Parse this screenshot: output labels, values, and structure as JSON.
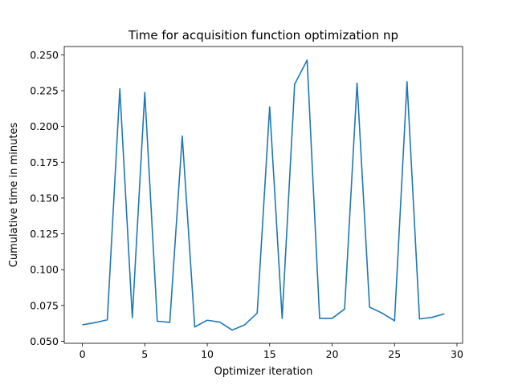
{
  "chart_data": {
    "type": "line",
    "title": "Time for acquisition function optimization np",
    "xlabel": "Optimizer iteration",
    "ylabel": "Cumulative time in minutes",
    "xlim": [
      -1.45,
      30.45
    ],
    "ylim": [
      0.0486,
      0.2558
    ],
    "xticks": [
      0,
      5,
      10,
      15,
      20,
      25,
      30
    ],
    "yticks": [
      0.05,
      0.075,
      0.1,
      0.125,
      0.15,
      0.175,
      0.2,
      0.225,
      0.25
    ],
    "ytick_labels": [
      "0.050",
      "0.075",
      "0.100",
      "0.125",
      "0.150",
      "0.175",
      "0.200",
      "0.225",
      "0.250"
    ],
    "grid": false,
    "line_color": "#1f77b4",
    "series": [
      {
        "x": [
          0,
          1,
          2,
          3,
          4,
          5,
          6,
          7,
          8,
          9,
          10,
          11,
          12,
          13,
          14,
          15,
          16,
          17,
          18,
          19,
          20,
          21,
          22,
          23,
          24,
          25,
          26,
          27,
          28,
          29
        ],
        "values": [
          0.0615,
          0.063,
          0.065,
          0.2263,
          0.0665,
          0.2237,
          0.064,
          0.0632,
          0.1933,
          0.06,
          0.0647,
          0.0634,
          0.0578,
          0.0615,
          0.0697,
          0.2137,
          0.066,
          0.2295,
          0.2463,
          0.066,
          0.066,
          0.0725,
          0.2303,
          0.0738,
          0.0697,
          0.0643,
          0.2312,
          0.0656,
          0.0667,
          0.0692
        ]
      }
    ]
  }
}
